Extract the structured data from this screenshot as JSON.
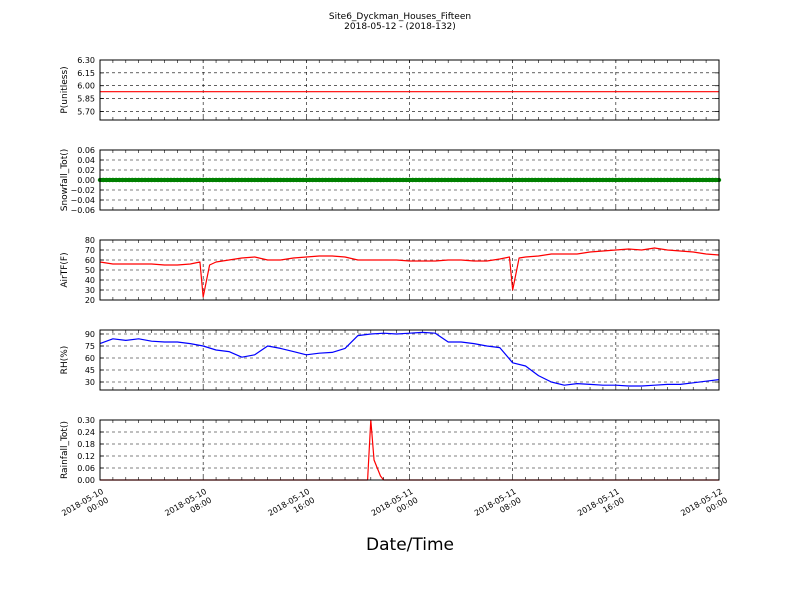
{
  "title": "Site6_Dyckman_Houses_Fifteen",
  "subtitle": "2018-05-12 - (2018-132)",
  "xlabel": "Date/Time",
  "x_ticks": [
    {
      "l1": "2018-05-10",
      "l2": "00:00"
    },
    {
      "l1": "2018-05-10",
      "l2": "08:00"
    },
    {
      "l1": "2018-05-10",
      "l2": "16:00"
    },
    {
      "l1": "2018-05-11",
      "l2": "00:00"
    },
    {
      "l1": "2018-05-11",
      "l2": "08:00"
    },
    {
      "l1": "2018-05-11",
      "l2": "16:00"
    },
    {
      "l1": "2018-05-12",
      "l2": "00:00"
    }
  ],
  "chart_data": [
    {
      "type": "line",
      "ylabel": "P(unitless)",
      "ylim": [
        5.6,
        6.3
      ],
      "yticks": [
        "6.30",
        "6.15",
        "6.00",
        "5.85",
        "5.70"
      ],
      "ytick_values": [
        6.3,
        6.15,
        6.0,
        5.85,
        5.7
      ],
      "color": "#ff0000",
      "x": [
        "2018-05-10 00:00",
        "2018-05-12 00:00"
      ],
      "values": [
        5.93,
        5.93
      ]
    },
    {
      "type": "line",
      "ylabel": "Snowfall_Tot()",
      "ylim": [
        -0.06,
        0.06
      ],
      "yticks": [
        "0.06",
        "0.04",
        "0.02",
        "0.00",
        "−0.02",
        "−0.04",
        "−0.06"
      ],
      "ytick_values": [
        0.06,
        0.04,
        0.02,
        0.0,
        -0.02,
        -0.04,
        -0.06
      ],
      "color": "#008000",
      "marker": "dots",
      "x": [
        "2018-05-10 00:00",
        "2018-05-12 00:00"
      ],
      "values": [
        0.0,
        0.0
      ]
    },
    {
      "type": "line",
      "ylabel": "AirTF(F)",
      "ylim": [
        20,
        80
      ],
      "yticks": [
        "80",
        "70",
        "60",
        "50",
        "40",
        "30",
        "20"
      ],
      "ytick_values": [
        80,
        70,
        60,
        50,
        40,
        30,
        20
      ],
      "color": "#ff0000",
      "x": [
        "2018-05-10 00:00",
        "2018-05-10 01:00",
        "2018-05-10 02:00",
        "2018-05-10 03:00",
        "2018-05-10 04:00",
        "2018-05-10 05:00",
        "2018-05-10 06:00",
        "2018-05-10 07:00",
        "2018-05-10 07:45",
        "2018-05-10 08:00",
        "2018-05-10 08:30",
        "2018-05-10 09:00",
        "2018-05-10 10:00",
        "2018-05-10 11:00",
        "2018-05-10 12:00",
        "2018-05-10 13:00",
        "2018-05-10 14:00",
        "2018-05-10 15:00",
        "2018-05-10 16:00",
        "2018-05-10 17:00",
        "2018-05-10 18:00",
        "2018-05-10 19:00",
        "2018-05-10 20:00",
        "2018-05-10 21:00",
        "2018-05-10 22:00",
        "2018-05-10 23:00",
        "2018-05-11 00:00",
        "2018-05-11 01:00",
        "2018-05-11 02:00",
        "2018-05-11 03:00",
        "2018-05-11 04:00",
        "2018-05-11 05:00",
        "2018-05-11 06:00",
        "2018-05-11 07:00",
        "2018-05-11 07:45",
        "2018-05-11 08:00",
        "2018-05-11 08:30",
        "2018-05-11 09:00",
        "2018-05-11 10:00",
        "2018-05-11 11:00",
        "2018-05-11 12:00",
        "2018-05-11 13:00",
        "2018-05-11 14:00",
        "2018-05-11 15:00",
        "2018-05-11 16:00",
        "2018-05-11 17:00",
        "2018-05-11 18:00",
        "2018-05-11 19:00",
        "2018-05-11 20:00",
        "2018-05-11 21:00",
        "2018-05-11 22:00",
        "2018-05-11 23:00",
        "2018-05-12 00:00"
      ],
      "values": [
        58,
        56,
        56,
        56,
        56,
        55,
        55,
        56,
        58,
        23,
        55,
        58,
        60,
        62,
        63,
        60,
        60,
        62,
        63,
        64,
        64,
        63,
        60,
        60,
        60,
        60,
        59,
        59,
        59,
        60,
        60,
        59,
        59,
        61,
        63,
        30,
        62,
        63,
        64,
        66,
        66,
        66,
        68,
        69,
        70,
        71,
        70,
        72,
        70,
        69,
        68,
        66,
        65
      ]
    },
    {
      "type": "line",
      "ylabel": "RH(%)",
      "ylim": [
        20,
        95
      ],
      "yticks": [
        "90",
        "75",
        "60",
        "45",
        "30"
      ],
      "ytick_values": [
        90,
        75,
        60,
        45,
        30
      ],
      "color": "#0000ff",
      "x": [
        "2018-05-10 00:00",
        "2018-05-10 01:00",
        "2018-05-10 02:00",
        "2018-05-10 03:00",
        "2018-05-10 04:00",
        "2018-05-10 05:00",
        "2018-05-10 06:00",
        "2018-05-10 07:00",
        "2018-05-10 08:00",
        "2018-05-10 09:00",
        "2018-05-10 10:00",
        "2018-05-10 11:00",
        "2018-05-10 12:00",
        "2018-05-10 13:00",
        "2018-05-10 14:00",
        "2018-05-10 15:00",
        "2018-05-10 16:00",
        "2018-05-10 17:00",
        "2018-05-10 18:00",
        "2018-05-10 19:00",
        "2018-05-10 20:00",
        "2018-05-10 21:00",
        "2018-05-10 22:00",
        "2018-05-10 23:00",
        "2018-05-11 00:00",
        "2018-05-11 01:00",
        "2018-05-11 02:00",
        "2018-05-11 03:00",
        "2018-05-11 04:00",
        "2018-05-11 05:00",
        "2018-05-11 06:00",
        "2018-05-11 07:00",
        "2018-05-11 08:00",
        "2018-05-11 09:00",
        "2018-05-11 10:00",
        "2018-05-11 11:00",
        "2018-05-11 12:00",
        "2018-05-11 13:00",
        "2018-05-11 14:00",
        "2018-05-11 15:00",
        "2018-05-11 16:00",
        "2018-05-11 17:00",
        "2018-05-11 18:00",
        "2018-05-11 19:00",
        "2018-05-11 20:00",
        "2018-05-11 21:00",
        "2018-05-11 22:00",
        "2018-05-11 23:00",
        "2018-05-12 00:00"
      ],
      "values": [
        78,
        84,
        82,
        84,
        81,
        80,
        80,
        78,
        75,
        70,
        68,
        61,
        64,
        75,
        72,
        68,
        64,
        66,
        67,
        72,
        88,
        90,
        91,
        90,
        91,
        92,
        91,
        80,
        80,
        78,
        75,
        73,
        54,
        50,
        38,
        30,
        26,
        28,
        27,
        26,
        26,
        25,
        25,
        26,
        27,
        27,
        29,
        31,
        33
      ]
    },
    {
      "type": "line",
      "ylabel": "Rainfall_Tot()",
      "ylim": [
        0,
        0.3
      ],
      "yticks": [
        "0.30",
        "0.24",
        "0.18",
        "0.12",
        "0.06",
        "0.00"
      ],
      "ytick_values": [
        0.3,
        0.24,
        0.18,
        0.12,
        0.06,
        0.0
      ],
      "color": "#ff0000",
      "x": [
        "2018-05-10 00:00",
        "2018-05-10 20:45",
        "2018-05-10 21:00",
        "2018-05-10 21:15",
        "2018-05-10 21:30",
        "2018-05-10 21:45",
        "2018-05-10 22:00",
        "2018-05-10 22:15",
        "2018-05-12 00:00"
      ],
      "values": [
        0,
        0,
        0.3,
        0.1,
        0.06,
        0.02,
        0,
        0,
        0
      ]
    }
  ]
}
